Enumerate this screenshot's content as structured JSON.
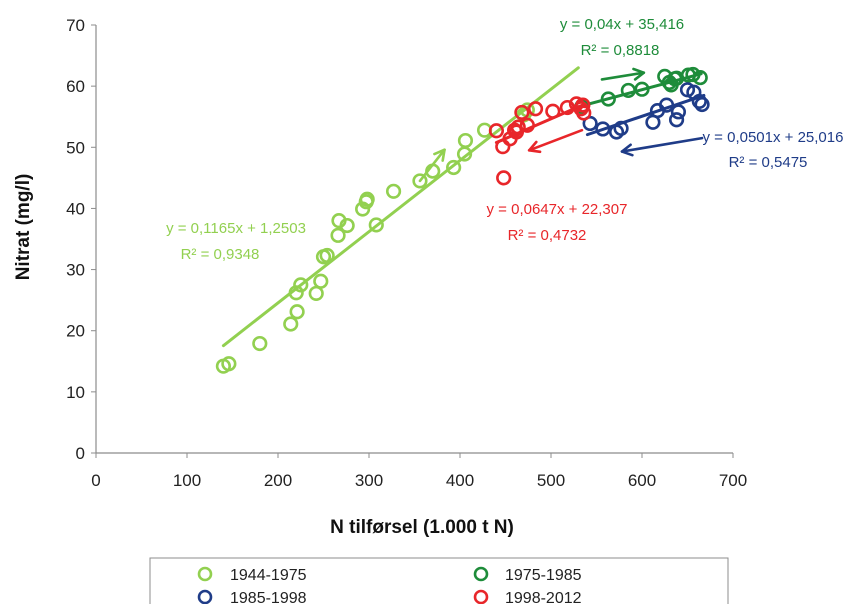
{
  "chart_data": {
    "type": "scatter",
    "xlabel": "N tilførsel (1.000 t N)",
    "ylabel": "Nitrat (mg/l)",
    "xlim": [
      0,
      700
    ],
    "ylim": [
      0,
      70
    ],
    "xticks": [
      "0",
      "100",
      "200",
      "300",
      "400",
      "500",
      "600",
      "700"
    ],
    "yticks": [
      "0",
      "10",
      "20",
      "30",
      "40",
      "50",
      "60",
      "70"
    ],
    "grid": false,
    "legend_position": "bottom",
    "series": [
      {
        "name": "1944-1975",
        "color": "#92d050",
        "points": [
          [
            140,
            14.2
          ],
          [
            146,
            14.6
          ],
          [
            180,
            17.9
          ],
          [
            214,
            21.1
          ],
          [
            220,
            26.2
          ],
          [
            221,
            23.1
          ],
          [
            225,
            27.5
          ],
          [
            242,
            26.1
          ],
          [
            247,
            28.1
          ],
          [
            250,
            32.1
          ],
          [
            254,
            32.3
          ],
          [
            266,
            35.6
          ],
          [
            267,
            38.0
          ],
          [
            276,
            37.2
          ],
          [
            293,
            39.9
          ],
          [
            297,
            41.1
          ],
          [
            298,
            41.5
          ],
          [
            308,
            37.3
          ],
          [
            327,
            42.8
          ],
          [
            356,
            44.5
          ],
          [
            370,
            46.1
          ],
          [
            393,
            46.7
          ],
          [
            405,
            48.9
          ],
          [
            406,
            51.1
          ],
          [
            427,
            52.8
          ],
          [
            470,
            55.3
          ],
          [
            474,
            56.1
          ]
        ],
        "trendline": {
          "x": [
            140,
            530
          ],
          "equation": "y = 0,1165x + 1,2503",
          "r2": "R² = 0,9348",
          "slope": 0.1165,
          "intercept": 1.2503
        }
      },
      {
        "name": "1975-1985",
        "color": "#1e8c3a",
        "points": [
          [
            534,
            56.7
          ],
          [
            563,
            57.9
          ],
          [
            585,
            59.3
          ],
          [
            600,
            59.5
          ],
          [
            625,
            61.6
          ],
          [
            630,
            60.6
          ],
          [
            632,
            60.2
          ],
          [
            636,
            61.2
          ],
          [
            638,
            61.3
          ],
          [
            651,
            61.8
          ],
          [
            656,
            61.9
          ],
          [
            664,
            61.4
          ]
        ],
        "trendline": {
          "x": [
            530,
            665
          ],
          "equation": "y = 0,04x + 35,416",
          "r2": "R² = 0,8818",
          "slope": 0.04,
          "intercept": 35.416
        }
      },
      {
        "name": "1985-1998",
        "color": "#1f3c88",
        "points": [
          [
            543,
            53.9
          ],
          [
            557,
            53.0
          ],
          [
            572,
            52.5
          ],
          [
            577,
            53.1
          ],
          [
            612,
            54.1
          ],
          [
            617,
            56.0
          ],
          [
            627,
            56.9
          ],
          [
            638,
            54.5
          ],
          [
            640,
            55.8
          ],
          [
            650,
            59.4
          ],
          [
            657,
            59.0
          ],
          [
            663,
            57.5
          ],
          [
            666,
            57.0
          ]
        ],
        "trendline": {
          "x": [
            540,
            668
          ],
          "equation": "y = 0,0501x + 25,016",
          "r2": "R² = 0,5475",
          "slope": 0.0501,
          "intercept": 25.016
        }
      },
      {
        "name": "1998-2012",
        "color": "#e8262a",
        "points": [
          [
            440,
            52.7
          ],
          [
            447,
            50.1
          ],
          [
            448,
            45.0
          ],
          [
            455,
            51.4
          ],
          [
            460,
            52.8
          ],
          [
            462,
            52.5
          ],
          [
            464,
            53.3
          ],
          [
            468,
            55.7
          ],
          [
            474,
            53.6
          ],
          [
            483,
            56.3
          ],
          [
            502,
            55.9
          ],
          [
            518,
            56.5
          ],
          [
            533,
            56.3
          ],
          [
            536,
            55.6
          ],
          [
            535,
            56.9
          ],
          [
            528,
            57.1
          ]
        ],
        "trendline": {
          "x": [
            440,
            540
          ],
          "equation": "y = 0,0647x + 22,307",
          "r2": "R² = 0,4732",
          "slope": 0.0647,
          "intercept": 22.307
        }
      }
    ],
    "annotations": [
      {
        "color": "#92d050",
        "from": [
          356,
          44.5
        ],
        "to": [
          383,
          49.6
        ]
      },
      {
        "color": "#1e8c3a",
        "from": [
          556,
          61.1
        ],
        "to": [
          602,
          62.2
        ]
      },
      {
        "color": "#1f3c88",
        "from": [
          666,
          51.5
        ],
        "to": [
          578,
          49.3
        ]
      },
      {
        "color": "#e8262a",
        "from": [
          534,
          52.8
        ],
        "to": [
          476,
          49.5
        ]
      }
    ]
  }
}
